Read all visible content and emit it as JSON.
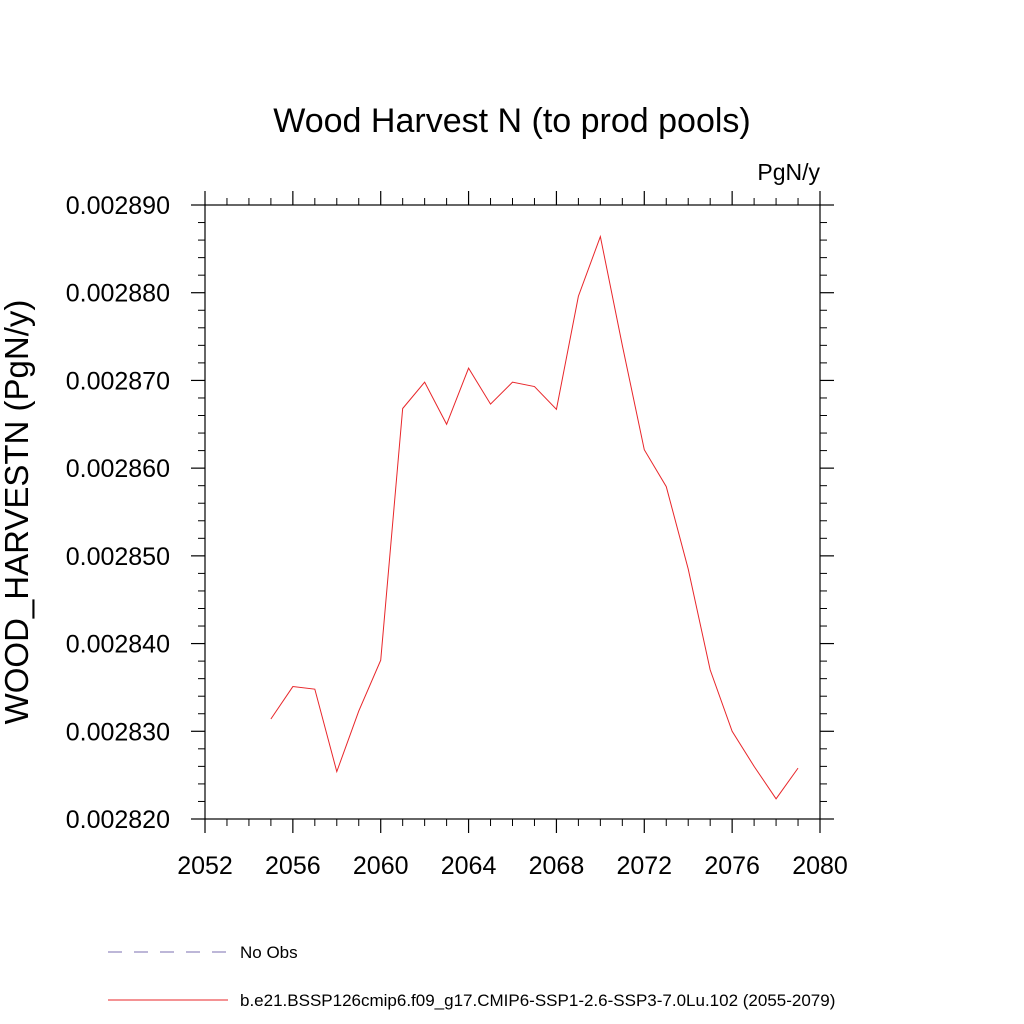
{
  "chart_data": {
    "type": "line",
    "title": "Wood Harvest N (to prod pools)",
    "units_label": "PgN/y",
    "xlabel": "",
    "ylabel": "WOOD_HARVESTN  (PgN/y)",
    "xlim": [
      2052,
      2080
    ],
    "ylim": [
      0.00282,
      0.00289
    ],
    "x_ticks": [
      "2052",
      "2056",
      "2060",
      "2064",
      "2068",
      "2072",
      "2076",
      "2080"
    ],
    "y_ticks": [
      "0.002820",
      "0.002830",
      "0.002840",
      "0.002850",
      "0.002860",
      "0.002870",
      "0.002880",
      "0.002890"
    ],
    "grid": false,
    "legend_position": "bottom",
    "legend": [
      {
        "label": "No Obs",
        "style": "dashed",
        "color": "#7b6fb0"
      },
      {
        "label": "b.e21.BSSP126cmip6.f09_g17.CMIP6-SSP1-2.6-SSP3-7.0Lu.102 (2055-2079)",
        "style": "solid",
        "color": "#e8262a"
      }
    ],
    "series": [
      {
        "name": "b.e21.BSSP126cmip6.f09_g17.CMIP6-SSP1-2.6-SSP3-7.0Lu.102 (2055-2079)",
        "color": "#e8262a",
        "x": [
          2055,
          2056,
          2057,
          2058,
          2059,
          2060,
          2061,
          2062,
          2063,
          2064,
          2065,
          2066,
          2067,
          2068,
          2069,
          2070,
          2071,
          2072,
          2073,
          2074,
          2075,
          2076,
          2077,
          2078,
          2079
        ],
        "y": [
          0.0028314,
          0.0028351,
          0.0028348,
          0.0028254,
          0.0028323,
          0.0028381,
          0.0028668,
          0.0028698,
          0.002865,
          0.0028714,
          0.0028673,
          0.0028698,
          0.0028693,
          0.0028667,
          0.0028796,
          0.0028864,
          0.002874,
          0.0028621,
          0.0028579,
          0.0028485,
          0.002837,
          0.00283,
          0.002826,
          0.0028223,
          0.0028258
        ]
      }
    ]
  }
}
